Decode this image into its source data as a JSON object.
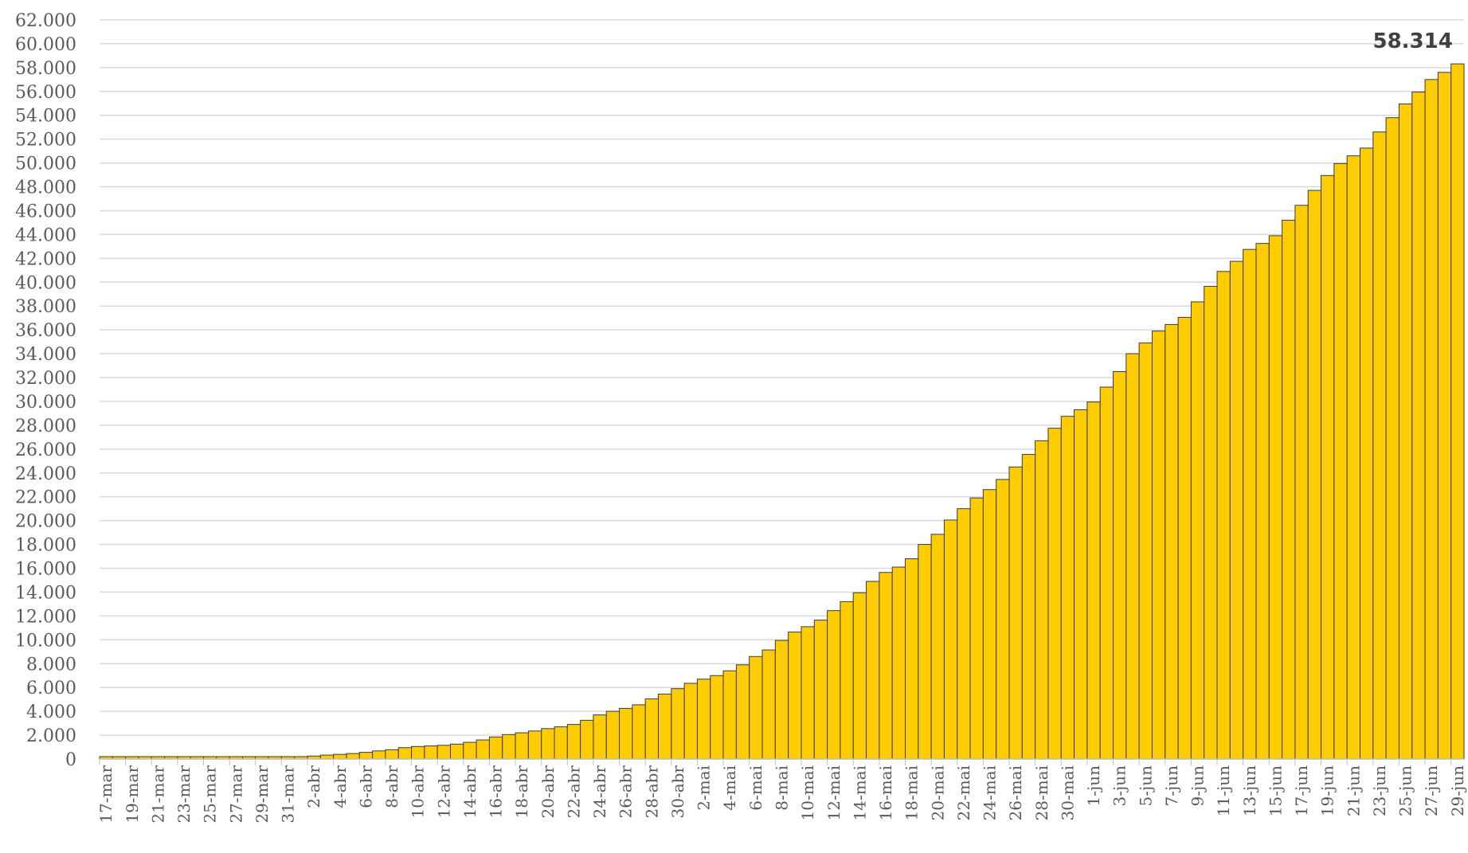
{
  "colors": {
    "bar": "#FFCC00",
    "bar_stroke": "#3a3a3a",
    "grid": "#d9d9d9",
    "text": "#595959"
  },
  "chart_data": {
    "type": "bar",
    "title": "",
    "xlabel": "",
    "ylabel": "",
    "ylim": [
      0,
      62000
    ],
    "grid": true,
    "yticks": [
      0,
      2000,
      4000,
      6000,
      8000,
      10000,
      12000,
      14000,
      16000,
      18000,
      20000,
      22000,
      24000,
      26000,
      28000,
      30000,
      32000,
      34000,
      36000,
      38000,
      40000,
      42000,
      44000,
      46000,
      48000,
      50000,
      52000,
      54000,
      56000,
      58000,
      60000,
      62000
    ],
    "ytick_labels": [
      "0",
      "2.000",
      "4.000",
      "6.000",
      "8.000",
      "10.000",
      "12.000",
      "14.000",
      "16.000",
      "18.000",
      "20.000",
      "22.000",
      "24.000",
      "26.000",
      "28.000",
      "30.000",
      "32.000",
      "34.000",
      "36.000",
      "38.000",
      "40.000",
      "42.000",
      "44.000",
      "46.000",
      "48.000",
      "50.000",
      "52.000",
      "54.000",
      "56.000",
      "58.000",
      "60.000",
      "62.000"
    ],
    "categories": [
      "17-mar",
      "18-mar",
      "19-mar",
      "20-mar",
      "21-mar",
      "22-mar",
      "23-mar",
      "24-mar",
      "25-mar",
      "26-mar",
      "27-mar",
      "28-mar",
      "29-mar",
      "30-mar",
      "31-mar",
      "1-abr",
      "2-abr",
      "3-abr",
      "4-abr",
      "5-abr",
      "6-abr",
      "7-abr",
      "8-abr",
      "9-abr",
      "10-abr",
      "11-abr",
      "12-abr",
      "13-abr",
      "14-abr",
      "15-abr",
      "16-abr",
      "17-abr",
      "18-abr",
      "19-abr",
      "20-abr",
      "21-abr",
      "22-abr",
      "23-abr",
      "24-abr",
      "25-abr",
      "26-abr",
      "27-abr",
      "28-abr",
      "29-abr",
      "30-abr",
      "1-mai",
      "2-mai",
      "3-mai",
      "4-mai",
      "5-mai",
      "6-mai",
      "7-mai",
      "8-mai",
      "9-mai",
      "10-mai",
      "11-mai",
      "12-mai",
      "13-mai",
      "14-mai",
      "15-mai",
      "16-mai",
      "17-mai",
      "18-mai",
      "19-mai",
      "20-mai",
      "21-mai",
      "22-mai",
      "23-mai",
      "24-mai",
      "25-mai",
      "26-mai",
      "27-mai",
      "28-mai",
      "29-mai",
      "30-mai",
      "31-mai",
      "1-jun",
      "2-jun",
      "3-jun",
      "4-jun",
      "5-jun",
      "6-jun",
      "7-jun",
      "8-jun",
      "9-jun",
      "10-jun",
      "11-jun",
      "12-jun",
      "13-jun",
      "14-jun",
      "15-jun",
      "16-jun",
      "17-jun",
      "18-jun",
      "19-jun",
      "20-jun",
      "21-jun",
      "22-jun",
      "23-jun",
      "24-jun",
      "25-jun",
      "26-jun",
      "27-jun",
      "28-jun",
      "29-jun"
    ],
    "x_tick_labels": [
      "17-mar",
      "19-mar",
      "21-mar",
      "23-mar",
      "25-mar",
      "27-mar",
      "29-mar",
      "31-mar",
      "2-abr",
      "4-abr",
      "6-abr",
      "8-abr",
      "10-abr",
      "12-abr",
      "14-abr",
      "16-abr",
      "18-abr",
      "20-abr",
      "22-abr",
      "24-abr",
      "26-abr",
      "28-abr",
      "30-abr",
      "2-mai",
      "4-mai",
      "6-mai",
      "8-mai",
      "10-mai",
      "12-mai",
      "14-mai",
      "16-mai",
      "18-mai",
      "20-mai",
      "22-mai",
      "24-mai",
      "26-mai",
      "28-mai",
      "30-mai",
      "1-jun",
      "3-jun",
      "5-jun",
      "7-jun",
      "9-jun",
      "11-jun",
      "13-jun",
      "15-jun",
      "17-jun",
      "19-jun",
      "21-jun",
      "23-jun",
      "25-jun",
      "27-jun",
      "29-jun"
    ],
    "values": [
      0,
      0,
      0,
      0,
      0,
      0,
      0,
      0,
      0,
      0,
      0,
      0,
      0,
      0,
      130,
      170,
      250,
      330,
      390,
      460,
      560,
      680,
      780,
      950,
      1050,
      1100,
      1150,
      1250,
      1400,
      1600,
      1850,
      2050,
      2200,
      2350,
      2550,
      2700,
      2900,
      3250,
      3700,
      4000,
      4250,
      4550,
      5050,
      5450,
      5900,
      6350,
      6700,
      7000,
      7400,
      7900,
      8600,
      9150,
      9950,
      10650,
      11100,
      11650,
      12450,
      13200,
      13950,
      14900,
      15650,
      16100,
      16800,
      18000,
      18850,
      20050,
      21000,
      21900,
      22600,
      23450,
      24500,
      25550,
      26700,
      27750,
      28750,
      29300,
      29950,
      31200,
      32500,
      34000,
      34900,
      35900,
      36450,
      37050,
      38350,
      39650,
      40900,
      41750,
      42750,
      43250,
      43900,
      45200,
      46450,
      47700,
      48950,
      49950,
      50600,
      51250,
      52600,
      53800,
      54950,
      55950,
      57000,
      57600,
      58314
    ],
    "data_labels": [
      {
        "category": "29-jun",
        "text": "58.314"
      }
    ]
  }
}
